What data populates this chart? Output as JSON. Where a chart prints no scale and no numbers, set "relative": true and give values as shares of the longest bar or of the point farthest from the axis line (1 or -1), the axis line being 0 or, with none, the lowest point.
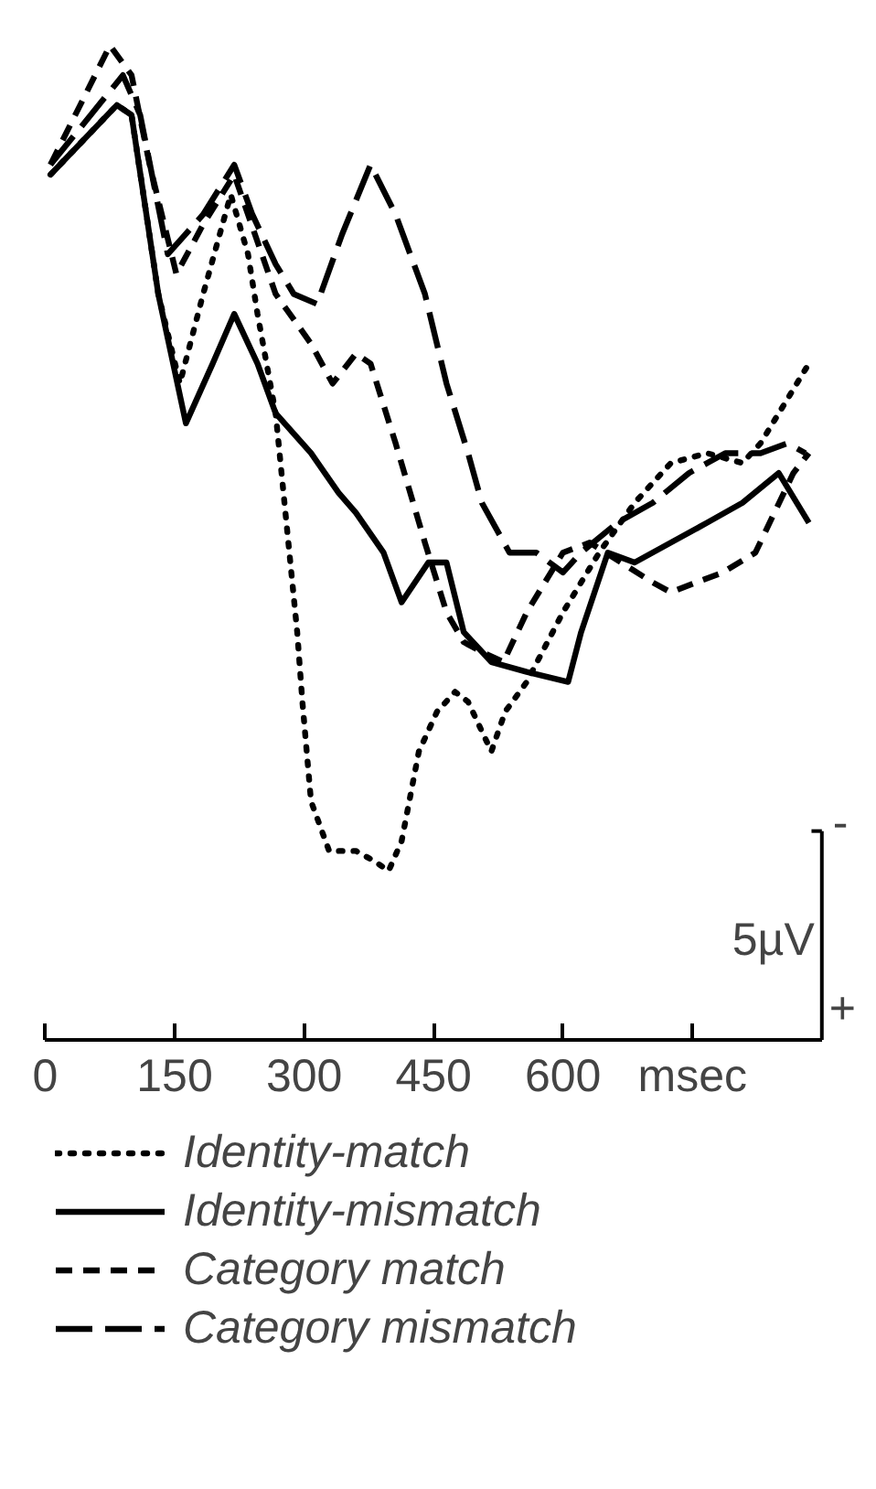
{
  "chart_data": {
    "type": "line",
    "relative": true,
    "xlim": [
      0,
      900
    ],
    "xticks": [
      0,
      150,
      300,
      450,
      600,
      {
        "value": 750,
        "label": "msec"
      }
    ],
    "grid": false,
    "legend": "bottom",
    "annotations": [
      "-",
      "5µV",
      "+"
    ],
    "series": [
      {
        "name": "Identity-match",
        "color": "#000000",
        "line_style": "dotted",
        "x": [
          6,
          83,
          100,
          131,
          156,
          183,
          215,
          235,
          246,
          267,
          292,
          298,
          308,
          329,
          360,
          381,
          398,
          413,
          433,
          454,
          475,
          490,
          517,
          533,
          558,
          600,
          642,
          683,
          725,
          767,
          808,
          829,
          850,
          885
        ],
        "values": [
          0.87,
          0.94,
          0.93,
          0.75,
          0.66,
          0.75,
          0.85,
          0.79,
          0.73,
          0.63,
          0.41,
          0.34,
          0.24,
          0.19,
          0.19,
          0.18,
          0.17,
          0.2,
          0.29,
          0.33,
          0.35,
          0.34,
          0.29,
          0.33,
          0.36,
          0.43,
          0.49,
          0.54,
          0.58,
          0.59,
          0.58,
          0.6,
          0.63,
          0.68
        ]
      },
      {
        "name": "Identity-mismatch",
        "color": "#000000",
        "line_style": "solid",
        "x": [
          6,
          83,
          100,
          131,
          163,
          194,
          219,
          246,
          267,
          308,
          340,
          360,
          392,
          413,
          444,
          465,
          485,
          517,
          558,
          606,
          621,
          652,
          683,
          725,
          767,
          808,
          850,
          871,
          885
        ],
        "values": [
          0.87,
          0.94,
          0.93,
          0.75,
          0.62,
          0.68,
          0.73,
          0.68,
          0.63,
          0.59,
          0.55,
          0.53,
          0.49,
          0.44,
          0.48,
          0.48,
          0.41,
          0.38,
          0.37,
          0.36,
          0.41,
          0.49,
          0.48,
          0.5,
          0.52,
          0.54,
          0.57,
          0.54,
          0.52
        ]
      },
      {
        "name": "Category match",
        "color": "#000000",
        "line_style": "dashed",
        "x": [
          6,
          75,
          100,
          121,
          152,
          183,
          219,
          267,
          308,
          333,
          360,
          377,
          406,
          440,
          465,
          485,
          506,
          531,
          558,
          579,
          600,
          631,
          704,
          725,
          754,
          785,
          823,
          867,
          885
        ],
        "values": [
          0.88,
          1.0,
          0.97,
          0.88,
          0.77,
          0.82,
          0.87,
          0.75,
          0.7,
          0.66,
          0.69,
          0.68,
          0.6,
          0.5,
          0.43,
          0.4,
          0.39,
          0.38,
          0.43,
          0.46,
          0.49,
          0.5,
          0.46,
          0.45,
          0.46,
          0.47,
          0.49,
          0.57,
          0.59
        ]
      },
      {
        "name": "Category mismatch",
        "color": "#000000",
        "line_style": "dashed",
        "x": [
          6,
          90,
          110,
          142,
          183,
          219,
          240,
          267,
          288,
          315,
          344,
          377,
          406,
          440,
          465,
          490,
          506,
          538,
          569,
          600,
          621,
          663,
          704,
          746,
          788,
          829,
          860,
          881
        ],
        "values": [
          0.88,
          0.97,
          0.93,
          0.79,
          0.83,
          0.88,
          0.83,
          0.78,
          0.75,
          0.74,
          0.81,
          0.88,
          0.83,
          0.75,
          0.66,
          0.59,
          0.54,
          0.49,
          0.49,
          0.47,
          0.49,
          0.52,
          0.54,
          0.57,
          0.59,
          0.59,
          0.6,
          0.59
        ]
      }
    ]
  }
}
